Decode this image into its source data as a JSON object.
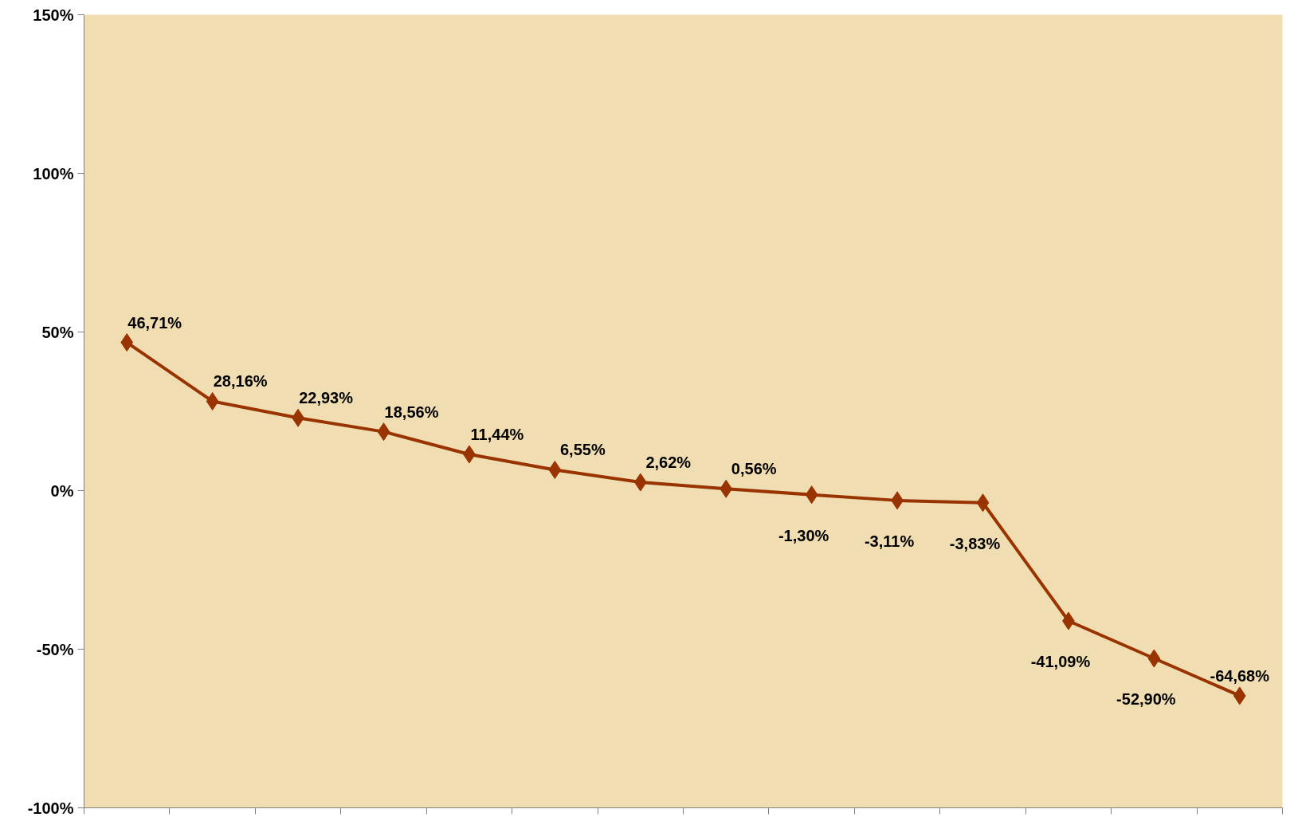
{
  "chart_data": {
    "type": "line",
    "categories": [
      null,
      null,
      null,
      null,
      null,
      null,
      null,
      null,
      null,
      null,
      null,
      null,
      null,
      null
    ],
    "series": [
      {
        "color": "#993300",
        "values": [
          46.71,
          28.16,
          22.93,
          18.56,
          11.44,
          6.55,
          2.62,
          0.56,
          -1.3,
          -3.11,
          -3.83,
          -41.09,
          -52.9,
          -64.68
        ],
        "value_labels": [
          "46,71%",
          "28,16%",
          "22,93%",
          "18,56%",
          "11,44%",
          "6,55%",
          "2,62%",
          "0,56%",
          "-1,30%",
          "-3,11%",
          "-3,83%",
          "-41,09%",
          "-52,90%",
          "-64,68%"
        ]
      }
    ],
    "ylim": [
      -100,
      150
    ],
    "yticks": [
      {
        "value": -100,
        "label": "-100%"
      },
      {
        "value": -50,
        "label": "-50%"
      },
      {
        "value": 0,
        "label": "0%"
      },
      {
        "value": 50,
        "label": "50%"
      },
      {
        "value": 100,
        "label": "100%"
      },
      {
        "value": 150,
        "label": "150%"
      }
    ],
    "tick_labels": "y",
    "marker": "diamond",
    "line_style": "solid"
  }
}
